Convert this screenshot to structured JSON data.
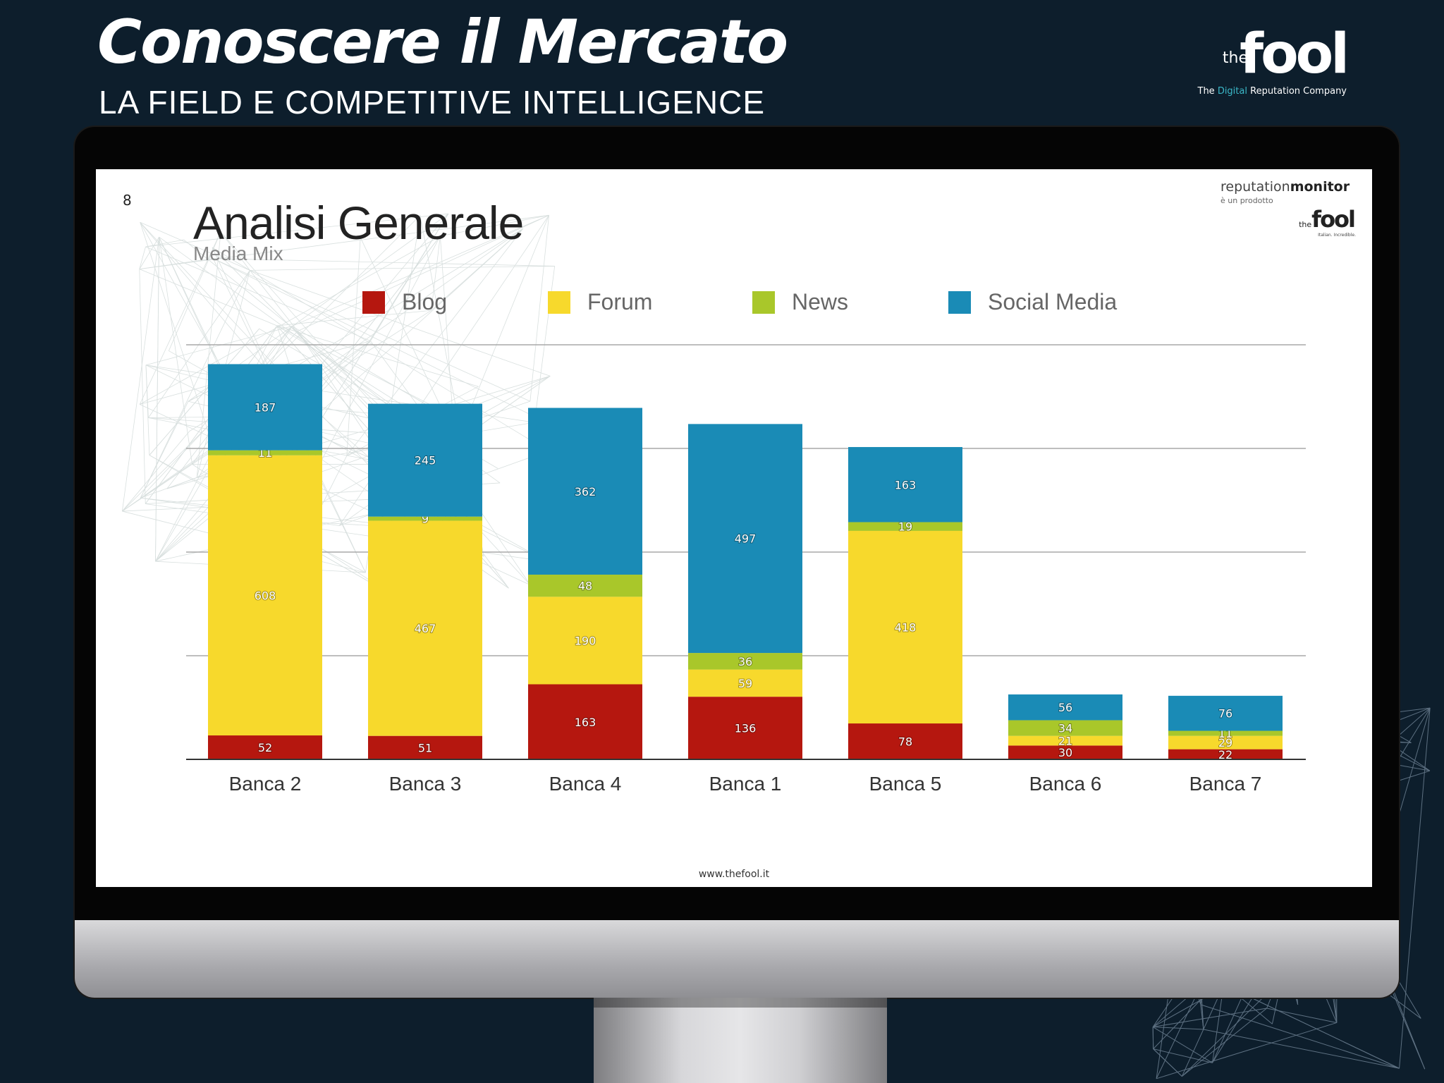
{
  "header": {
    "title": "Conoscere il Mercato",
    "subtitle": "LA FIELD E COMPETITIVE INTELLIGENCE"
  },
  "brand": {
    "the": "the",
    "fool": "fool",
    "tagline_pre": "The ",
    "tagline_accent": "Digital",
    "tagline_post": " Reputation Company"
  },
  "slide": {
    "number": "8",
    "title": "Analisi Generale",
    "subtitle": "Media Mix",
    "footer": "www.thefool.it",
    "logo": {
      "reputation": "reputation",
      "monitor": "monitor",
      "sub": "è un prodotto",
      "the": "the",
      "fool": "fool",
      "tag": "Italian. Incredible."
    }
  },
  "colors": {
    "blog": "#b5170f",
    "forum": "#f7d92c",
    "news": "#a9c72a",
    "social": "#1a8bb6",
    "page_bg": "#0d1e2c"
  },
  "chart_data": {
    "type": "bar",
    "stacked": true,
    "categories": [
      "Banca 2",
      "Banca 3",
      "Banca 4",
      "Banca 1",
      "Banca 5",
      "Banca 6",
      "Banca 7"
    ],
    "series": [
      {
        "name": "Blog",
        "values": [
          52,
          51,
          163,
          136,
          78,
          30,
          22
        ]
      },
      {
        "name": "Forum",
        "values": [
          608,
          467,
          190,
          59,
          418,
          21,
          29
        ]
      },
      {
        "name": "News",
        "values": [
          11,
          9,
          48,
          36,
          19,
          34,
          11
        ]
      },
      {
        "name": "Social Media",
        "values": [
          187,
          245,
          362,
          497,
          163,
          56,
          76
        ]
      }
    ],
    "ylim": [
      0,
      900
    ],
    "grid": true,
    "legend": "top",
    "data_labels": true
  }
}
